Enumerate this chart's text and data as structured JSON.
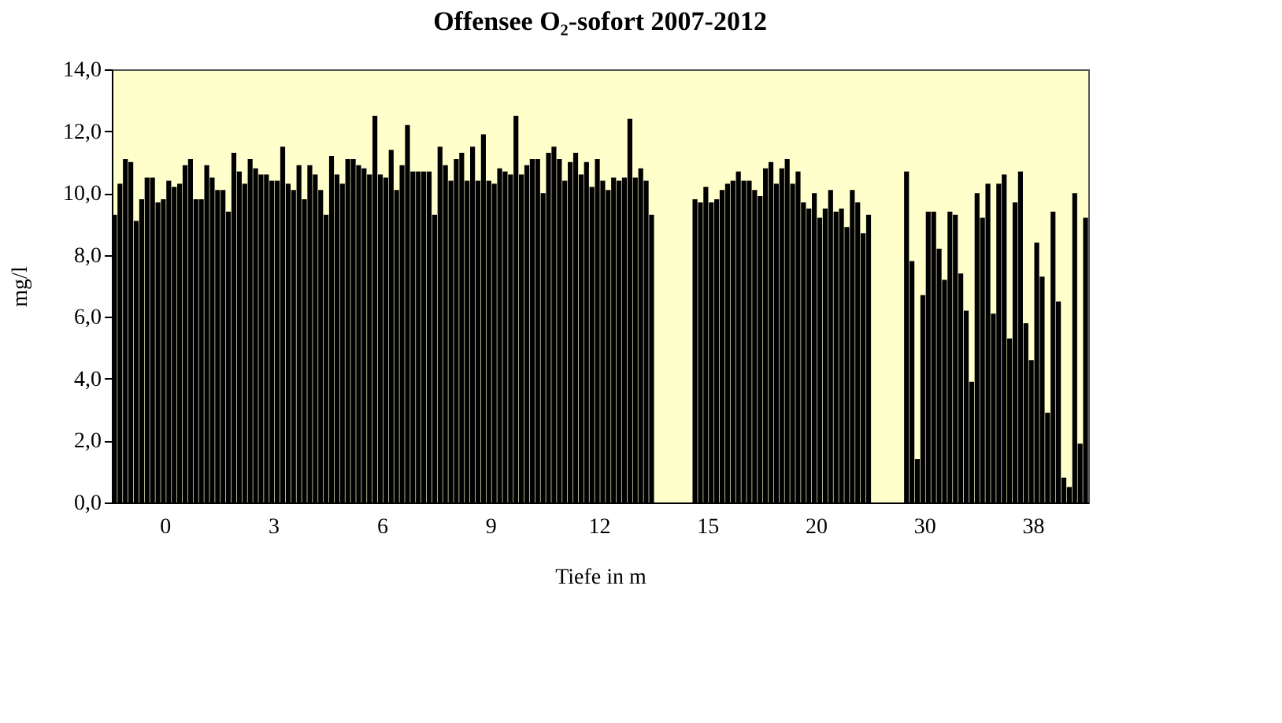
{
  "chart_data": {
    "type": "bar",
    "title": "Offensee O₂-sofort 2007-2012",
    "xlabel": "Tiefe in m",
    "ylabel": "mg/l",
    "categories": [
      null,
      null,
      null,
      null,
      null,
      null,
      null,
      null,
      null,
      null,
      "0",
      null,
      null,
      null,
      null,
      null,
      null,
      null,
      null,
      null,
      null,
      null,
      null,
      null,
      null,
      null,
      null,
      null,
      null,
      null,
      "3",
      null,
      null,
      null,
      null,
      null,
      null,
      null,
      null,
      null,
      null,
      null,
      null,
      null,
      null,
      null,
      null,
      null,
      null,
      null,
      "6",
      null,
      null,
      null,
      null,
      null,
      null,
      null,
      null,
      null,
      null,
      null,
      null,
      null,
      null,
      null,
      null,
      null,
      null,
      null,
      "9",
      null,
      null,
      null,
      null,
      null,
      null,
      null,
      null,
      null,
      null,
      null,
      null,
      null,
      null,
      null,
      null,
      null,
      null,
      null,
      "12",
      null,
      null,
      null,
      null,
      null,
      null,
      null,
      null,
      null,
      null,
      null,
      null,
      null,
      null,
      null,
      null,
      null,
      null,
      null,
      "15",
      null,
      null,
      null,
      null,
      null,
      null,
      null,
      null,
      null,
      null,
      null,
      null,
      null,
      null,
      null,
      null,
      null,
      null,
      null,
      "20",
      null,
      null,
      null,
      null,
      null,
      null,
      null,
      null,
      null,
      null,
      null,
      null,
      null,
      null,
      null,
      null,
      null,
      null,
      null,
      "30",
      null,
      null,
      null,
      null,
      null,
      null,
      null,
      null,
      null,
      null,
      null,
      null,
      null,
      null,
      null,
      null,
      null,
      null,
      null,
      "38",
      null,
      null,
      null,
      null,
      null,
      null,
      null,
      null,
      null
    ],
    "values": [
      9.3,
      10.3,
      11.1,
      11.0,
      9.1,
      9.8,
      10.5,
      10.5,
      9.7,
      9.8,
      10.4,
      10.2,
      10.3,
      10.9,
      11.1,
      9.8,
      9.8,
      10.9,
      10.5,
      10.1,
      10.1,
      9.4,
      11.3,
      10.7,
      10.3,
      11.1,
      10.8,
      10.6,
      10.6,
      10.4,
      10.4,
      11.5,
      10.3,
      10.1,
      10.9,
      9.8,
      10.9,
      10.6,
      10.1,
      9.3,
      11.2,
      10.6,
      10.3,
      11.1,
      11.1,
      10.9,
      10.8,
      10.6,
      12.5,
      10.6,
      10.5,
      11.4,
      10.1,
      10.9,
      12.2,
      10.7,
      10.7,
      10.7,
      10.7,
      9.3,
      11.5,
      10.9,
      10.4,
      11.1,
      11.3,
      10.4,
      11.5,
      10.4,
      11.9,
      10.4,
      10.3,
      10.8,
      10.7,
      10.6,
      12.5,
      10.6,
      10.9,
      11.1,
      11.1,
      10.0,
      11.3,
      11.5,
      11.1,
      10.4,
      11.0,
      11.3,
      10.6,
      11.0,
      10.2,
      11.1,
      10.4,
      10.1,
      10.5,
      10.4,
      10.5,
      12.4,
      10.5,
      10.8,
      10.4,
      9.3,
      null,
      null,
      null,
      null,
      null,
      null,
      null,
      9.8,
      9.7,
      10.2,
      9.7,
      9.8,
      10.1,
      10.3,
      10.4,
      10.7,
      10.4,
      10.4,
      10.1,
      9.9,
      10.8,
      11.0,
      10.3,
      10.8,
      11.1,
      10.3,
      10.7,
      9.7,
      9.5,
      10.0,
      9.2,
      9.5,
      10.1,
      9.4,
      9.5,
      8.9,
      10.1,
      9.7,
      8.7,
      9.3,
      null,
      null,
      null,
      null,
      null,
      null,
      10.7,
      7.8,
      1.4,
      6.7,
      9.4,
      9.4,
      8.2,
      7.2,
      9.4,
      9.3,
      7.4,
      6.2,
      3.9,
      10.0,
      9.2,
      10.3,
      6.1,
      10.3,
      10.6,
      5.3,
      9.7,
      10.7,
      5.8,
      4.6,
      8.4,
      7.3,
      2.9,
      9.4,
      6.5,
      0.8,
      0.5,
      10.0,
      1.9,
      9.2
    ],
    "color": "#000000",
    "ylim": [
      0,
      14
    ],
    "yticks": [
      {
        "value": 0,
        "label": "0,0"
      },
      {
        "value": 2,
        "label": "2,0"
      },
      {
        "value": 4,
        "label": "4,0"
      },
      {
        "value": 6,
        "label": "6,0"
      },
      {
        "value": 8,
        "label": "8,0"
      },
      {
        "value": 10,
        "label": "10,0"
      },
      {
        "value": 12,
        "label": "12,0"
      },
      {
        "value": 14,
        "label": "14,0"
      }
    ],
    "grid": false
  }
}
